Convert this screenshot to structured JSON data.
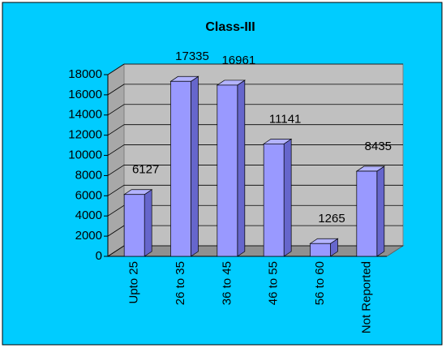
{
  "chart_data": {
    "type": "bar",
    "title": "Class-III",
    "categories": [
      "Upto 25",
      "26 to 35",
      "36 to 45",
      "46 to 55",
      "56 to 60",
      "Not Reported"
    ],
    "values": [
      6127,
      17335,
      16961,
      11141,
      1265,
      8435
    ],
    "color": "#9999ff",
    "ylim": [
      0,
      18000
    ],
    "yticks": [
      0,
      2000,
      4000,
      6000,
      8000,
      10000,
      12000,
      14000,
      16000,
      18000
    ],
    "grid": true
  }
}
